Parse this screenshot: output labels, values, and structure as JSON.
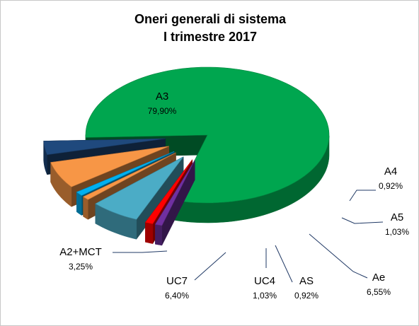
{
  "chart_data": {
    "type": "pie",
    "style": "3d-exploded",
    "title_lines": [
      "Oneri generali di sistema",
      "I trimestre 2017"
    ],
    "slices": [
      {
        "name": "A3",
        "value": 79.9,
        "label": "79,90%",
        "color": "#00a64f",
        "exploded": false
      },
      {
        "name": "A4",
        "value": 0.92,
        "label": "0,92%",
        "color": "#7030a0",
        "exploded": true
      },
      {
        "name": "A5",
        "value": 1.03,
        "label": "1,03%",
        "color": "#ff0000",
        "exploded": true
      },
      {
        "name": "Ae",
        "value": 6.55,
        "label": "6,55%",
        "color": "#4bacc6",
        "exploded": true
      },
      {
        "name": "AS",
        "value": 0.92,
        "label": "0,92%",
        "color": "#f79646",
        "exploded": true
      },
      {
        "name": "UC4",
        "value": 1.03,
        "label": "1,03%",
        "color": "#00b0f0",
        "exploded": true
      },
      {
        "name": "UC7",
        "value": 6.4,
        "label": "6,40%",
        "color": "#f79646",
        "exploded": true
      },
      {
        "name": "A2+MCT",
        "value": 3.25,
        "label": "3,25%",
        "color": "#1f497d",
        "exploded": true
      }
    ]
  }
}
